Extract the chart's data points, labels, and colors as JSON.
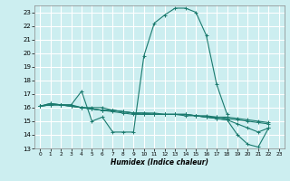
{
  "xlabel": "Humidex (Indice chaleur)",
  "bg_color": "#cceef0",
  "grid_color": "#ffffff",
  "line_color": "#1a7a6e",
  "xlim": [
    -0.5,
    23.5
  ],
  "ylim": [
    13,
    23.5
  ],
  "yticks": [
    13,
    14,
    15,
    16,
    17,
    18,
    19,
    20,
    21,
    22,
    23
  ],
  "xticks": [
    0,
    1,
    2,
    3,
    4,
    5,
    6,
    7,
    8,
    9,
    10,
    11,
    12,
    13,
    14,
    15,
    16,
    17,
    18,
    19,
    20,
    21,
    22,
    23
  ],
  "curves": [
    [
      16.1,
      16.3,
      16.2,
      16.2,
      17.2,
      15.0,
      15.3,
      14.2,
      14.2,
      14.2,
      19.8,
      22.2,
      22.8,
      23.3,
      23.3,
      23.0,
      21.3,
      17.7,
      15.5,
      null,
      null,
      null,
      null,
      null
    ],
    [
      16.1,
      16.3,
      16.2,
      16.2,
      16.0,
      16.0,
      16.0,
      15.8,
      15.7,
      15.6,
      15.5,
      15.5,
      15.5,
      15.5,
      15.5,
      15.4,
      15.3,
      15.2,
      15.1,
      14.0,
      13.3,
      13.1,
      14.5,
      null
    ],
    [
      16.1,
      16.2,
      16.2,
      16.1,
      16.0,
      15.9,
      15.8,
      15.7,
      15.6,
      15.5,
      15.5,
      15.5,
      15.5,
      15.5,
      15.5,
      15.4,
      15.3,
      15.2,
      15.1,
      14.8,
      14.5,
      14.2,
      14.5,
      null
    ],
    [
      16.1,
      16.2,
      16.2,
      16.1,
      16.0,
      15.9,
      15.8,
      15.8,
      15.7,
      15.6,
      15.6,
      15.5,
      15.5,
      15.5,
      15.4,
      15.4,
      15.3,
      15.3,
      15.2,
      15.1,
      15.0,
      14.9,
      14.8,
      null
    ],
    [
      16.1,
      16.2,
      16.2,
      16.1,
      16.0,
      15.9,
      15.8,
      15.8,
      15.7,
      15.6,
      15.6,
      15.6,
      15.5,
      15.5,
      15.5,
      15.4,
      15.4,
      15.3,
      15.3,
      15.2,
      15.1,
      15.0,
      14.9,
      null
    ]
  ]
}
